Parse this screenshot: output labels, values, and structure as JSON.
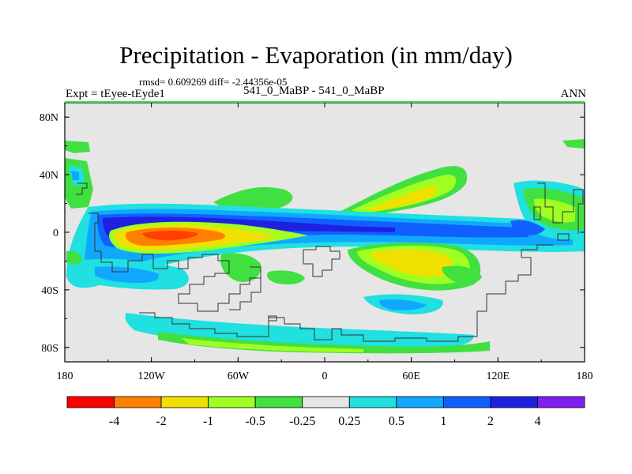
{
  "chart_data": {
    "type": "heatmap",
    "title": "Precipitation - Evaporation (in mm/day)",
    "stats_text": "rmsd= 0.609269 diff= -2.44356e-05",
    "left_label": "Expt = tEyee-tEyde1",
    "center_label": "541_0_MaBP - 541_0_MaBP",
    "right_label": "ANN",
    "x_tick_labels": [
      "180",
      "120W",
      "60W",
      "0",
      "60E",
      "120E",
      "180"
    ],
    "y_tick_labels": [
      "80N",
      "40N",
      "0",
      "40S",
      "80S"
    ],
    "xlim": [
      -180,
      180
    ],
    "ylim": [
      -90,
      90
    ],
    "colorbar": {
      "levels": [
        "-4",
        "-2",
        "-1",
        "-0.5",
        "-0.25",
        "0.25",
        "0.5",
        "1",
        "2",
        "4"
      ],
      "colors": [
        "#ff0000",
        "#ff8000",
        "#f0e000",
        "#a0ff20",
        "#40e040",
        "#e6e6e6",
        "#20e0e0",
        "#10a8ff",
        "#1060ff",
        "#2020e0",
        "#8020f0"
      ]
    },
    "features": [
      {
        "name": "tropical-convergence-band",
        "lon": [
          -140,
          150
        ],
        "lat": [
          -14,
          12
        ],
        "level": "1"
      },
      {
        "name": "pacific-dry-tongue",
        "lon": [
          -150,
          -70
        ],
        "lat": [
          -8,
          2
        ],
        "level": "-4"
      },
      {
        "name": "northern-midlatitude-storm-band",
        "lon": [
          -60,
          100
        ],
        "lat": [
          10,
          30
        ],
        "level": "-0.5"
      },
      {
        "name": "southern-subtropical-dry-zone",
        "lon": [
          0,
          110
        ],
        "lat": [
          -32,
          -12
        ],
        "level": "-1"
      },
      {
        "name": "southern-ocean-band",
        "lon": [
          -160,
          100
        ],
        "lat": [
          -76,
          -60
        ],
        "level": "0.5"
      }
    ]
  }
}
